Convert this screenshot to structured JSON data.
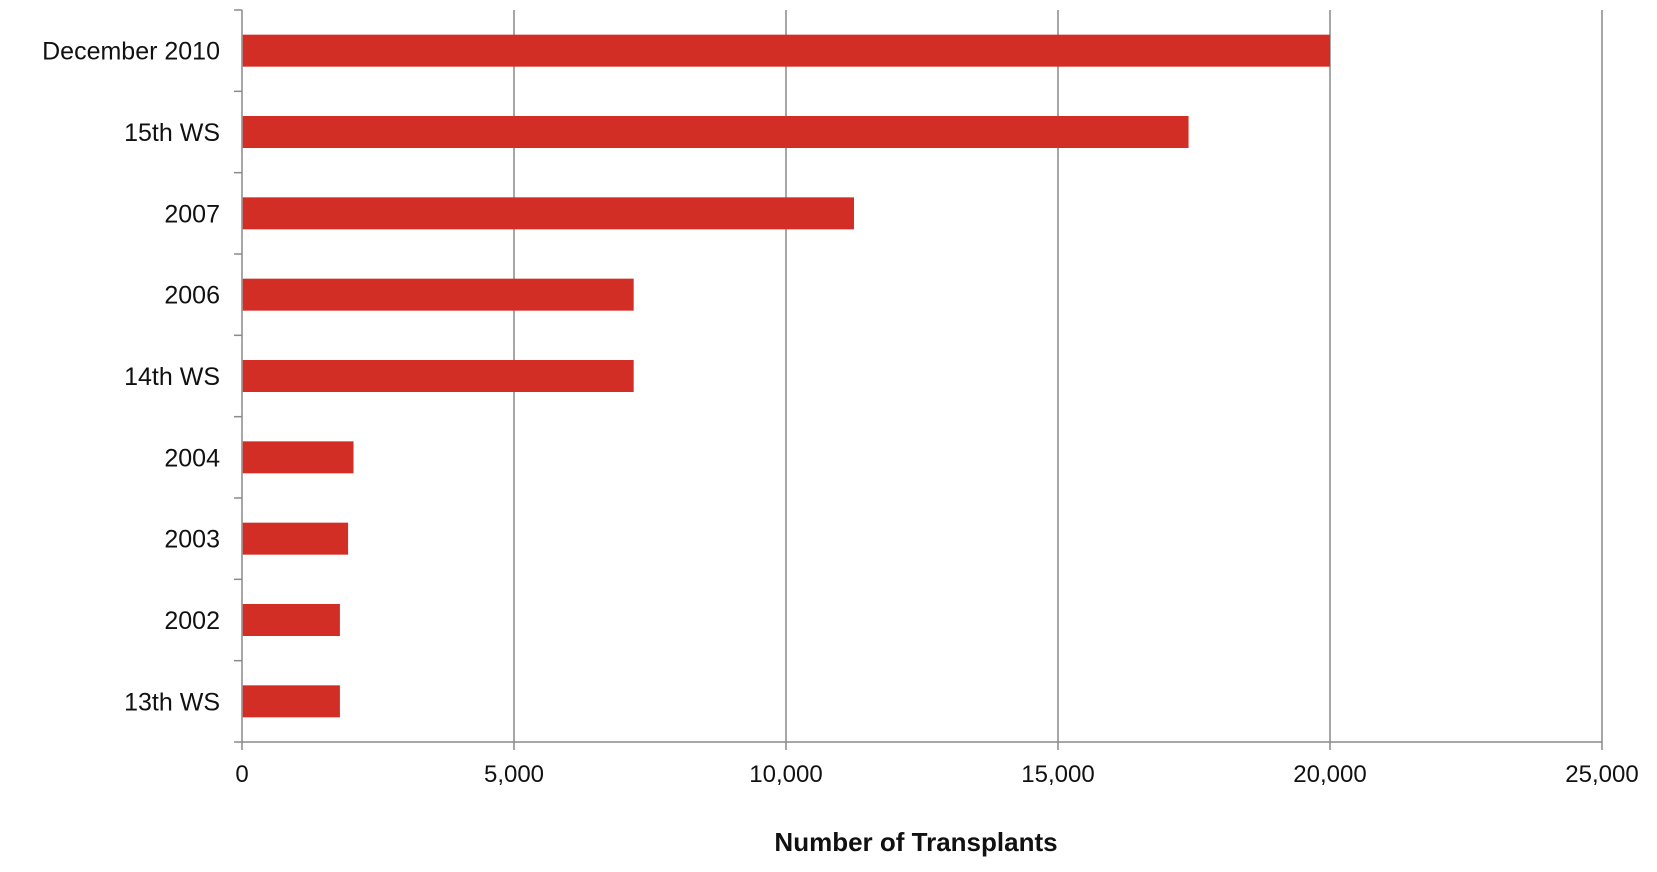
{
  "chart_data": {
    "type": "bar",
    "orientation": "horizontal",
    "categories": [
      "December 2010",
      "15th WS",
      "2007",
      "2006",
      "14th WS",
      "2004",
      "2003",
      "2002",
      "13th WS"
    ],
    "values": [
      20000,
      17400,
      11250,
      7200,
      7200,
      2050,
      1950,
      1800,
      1800
    ],
    "xlabel": "Number of Transplants",
    "ylabel": "",
    "xlim": [
      0,
      25000
    ],
    "xticks": [
      0,
      5000,
      10000,
      15000,
      20000,
      25000
    ],
    "xtick_labels": [
      "0",
      "5,000",
      "10,000",
      "15,000",
      "20,000",
      "25,000"
    ],
    "grid": "vertical major gridlines",
    "legend": "none",
    "bar_color": "#d22e25"
  }
}
